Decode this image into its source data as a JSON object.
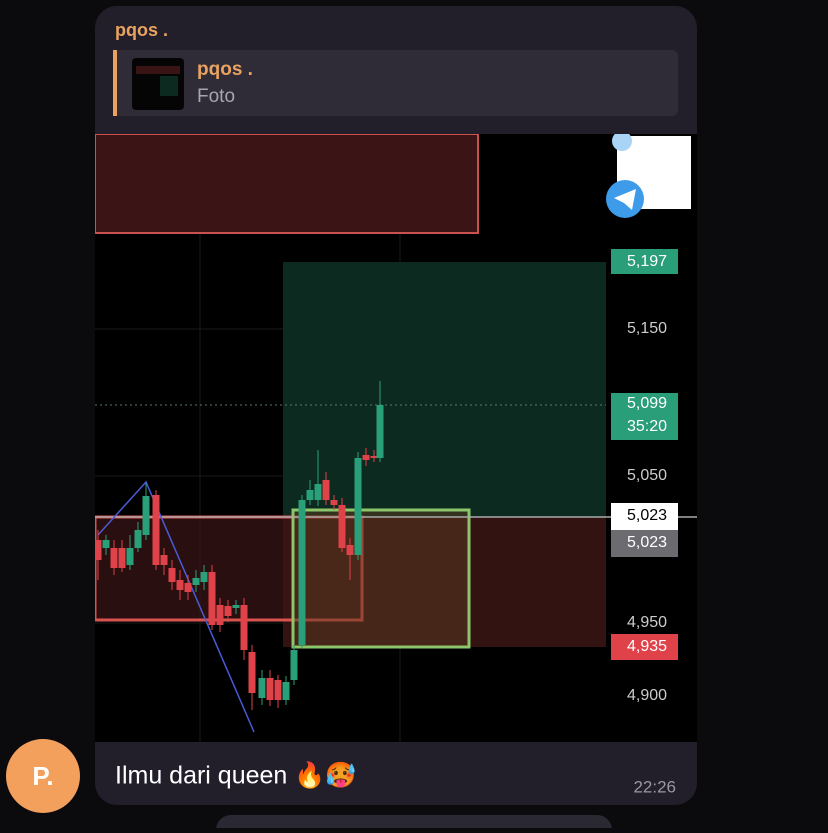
{
  "message": {
    "sender": "pqos .",
    "reply": {
      "sender": "pqos .",
      "text": "Foto"
    },
    "caption": "Ilmu dari queen 🔥🥵",
    "time": "22:26",
    "avatar": "P."
  },
  "chart_image": {
    "price_labels": [
      "5,197",
      "5,150",
      "5,099",
      "35:20",
      "5,050",
      "5,023",
      "5,023",
      "4,950",
      "4,935",
      "4,900"
    ]
  }
}
